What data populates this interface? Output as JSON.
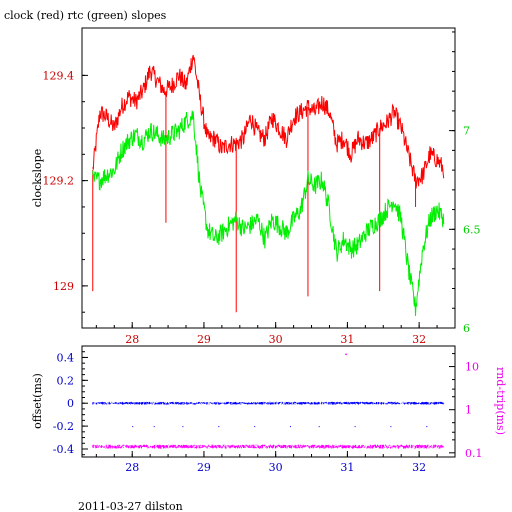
{
  "title": "clock (red) rtc (green) slopes",
  "footer": "2011-03-27 dilston",
  "colors": {
    "clock": "#ff0000",
    "rtc": "#00ee00",
    "offset": "#0000ff",
    "rndtrip": "#ff00ff",
    "axis_left_top": "#cc0000",
    "axis_right_top": "#00cc00",
    "axis_blue": "#0000cc",
    "axis_magenta": "#ee00ee"
  },
  "chart_data": [
    {
      "type": "line",
      "title": "clock (red) rtc (green) slopes",
      "xlabel": "",
      "ylabel": "clockslope",
      "ylabel_right": "",
      "xlim": [
        27.3,
        32.5
      ],
      "ylim": [
        128.92,
        129.49
      ],
      "ylim_right": [
        6.0,
        7.52
      ],
      "x_ticks": [
        28,
        29,
        30,
        31,
        32
      ],
      "x_tick_labels": [
        "28",
        "29",
        "30",
        "31",
        "32"
      ],
      "y_ticks": [
        129,
        129.2,
        129.4
      ],
      "y_tick_labels": [
        "129",
        "129.2",
        "129.4"
      ],
      "y_right_ticks": [
        6,
        6.5,
        7
      ],
      "y_right_tick_labels": [
        "6",
        "6.5",
        "7"
      ],
      "series": [
        {
          "name": "clock",
          "axis": "left",
          "points": [
            [
              27.45,
              129.22
            ],
            [
              27.55,
              129.33
            ],
            [
              27.65,
              129.32
            ],
            [
              27.75,
              129.3
            ],
            [
              27.85,
              129.34
            ],
            [
              27.95,
              129.36
            ],
            [
              28.05,
              129.35
            ],
            [
              28.15,
              129.37
            ],
            [
              28.25,
              129.41
            ],
            [
              28.35,
              129.39
            ],
            [
              28.45,
              129.37
            ],
            [
              28.55,
              129.38
            ],
            [
              28.65,
              129.4
            ],
            [
              28.75,
              129.38
            ],
            [
              28.85,
              129.44
            ],
            [
              28.95,
              129.35
            ],
            [
              29.05,
              129.28
            ],
            [
              29.15,
              129.28
            ],
            [
              29.25,
              129.26
            ],
            [
              29.35,
              129.27
            ],
            [
              29.45,
              129.27
            ],
            [
              29.55,
              129.28
            ],
            [
              29.65,
              129.32
            ],
            [
              29.75,
              129.29
            ],
            [
              29.85,
              129.28
            ],
            [
              29.95,
              129.32
            ],
            [
              30.05,
              129.3
            ],
            [
              30.15,
              129.28
            ],
            [
              30.25,
              129.32
            ],
            [
              30.35,
              129.33
            ],
            [
              30.45,
              129.34
            ],
            [
              30.55,
              129.33
            ],
            [
              30.65,
              129.35
            ],
            [
              30.75,
              129.33
            ],
            [
              30.85,
              129.27
            ],
            [
              30.95,
              129.28
            ],
            [
              31.05,
              129.25
            ],
            [
              31.15,
              129.28
            ],
            [
              31.25,
              129.27
            ],
            [
              31.35,
              129.28
            ],
            [
              31.45,
              129.3
            ],
            [
              31.55,
              129.31
            ],
            [
              31.65,
              129.33
            ],
            [
              31.75,
              129.3
            ],
            [
              31.85,
              129.25
            ],
            [
              31.95,
              129.2
            ],
            [
              32.05,
              129.21
            ],
            [
              32.15,
              129.25
            ],
            [
              32.25,
              129.24
            ],
            [
              32.35,
              129.22
            ]
          ],
          "spikes": [
            [
              27.45,
              128.99
            ],
            [
              28.47,
              129.12
            ],
            [
              29.45,
              128.95
            ],
            [
              30.45,
              128.98
            ],
            [
              31.45,
              128.99
            ],
            [
              31.95,
              129.15
            ]
          ]
        },
        {
          "name": "rtc",
          "axis": "right",
          "points": [
            [
              27.45,
              6.75
            ],
            [
              27.55,
              6.75
            ],
            [
              27.65,
              6.78
            ],
            [
              27.75,
              6.8
            ],
            [
              27.85,
              6.9
            ],
            [
              27.95,
              6.95
            ],
            [
              28.05,
              6.98
            ],
            [
              28.15,
              6.95
            ],
            [
              28.25,
              7.0
            ],
            [
              28.35,
              6.98
            ],
            [
              28.45,
              6.95
            ],
            [
              28.55,
              6.98
            ],
            [
              28.65,
              7.0
            ],
            [
              28.75,
              7.05
            ],
            [
              28.85,
              7.08
            ],
            [
              28.95,
              6.7
            ],
            [
              29.05,
              6.5
            ],
            [
              29.15,
              6.45
            ],
            [
              29.25,
              6.48
            ],
            [
              29.35,
              6.52
            ],
            [
              29.45,
              6.55
            ],
            [
              29.55,
              6.5
            ],
            [
              29.65,
              6.52
            ],
            [
              29.75,
              6.55
            ],
            [
              29.85,
              6.45
            ],
            [
              29.95,
              6.55
            ],
            [
              30.05,
              6.52
            ],
            [
              30.15,
              6.48
            ],
            [
              30.25,
              6.55
            ],
            [
              30.35,
              6.6
            ],
            [
              30.45,
              6.75
            ],
            [
              30.55,
              6.72
            ],
            [
              30.65,
              6.75
            ],
            [
              30.75,
              6.6
            ],
            [
              30.85,
              6.38
            ],
            [
              30.95,
              6.45
            ],
            [
              31.05,
              6.4
            ],
            [
              31.15,
              6.42
            ],
            [
              31.25,
              6.48
            ],
            [
              31.35,
              6.52
            ],
            [
              31.45,
              6.55
            ],
            [
              31.55,
              6.6
            ],
            [
              31.65,
              6.65
            ],
            [
              31.75,
              6.55
            ],
            [
              31.85,
              6.3
            ],
            [
              31.95,
              6.1
            ],
            [
              32.05,
              6.4
            ],
            [
              32.15,
              6.55
            ],
            [
              32.25,
              6.6
            ],
            [
              32.35,
              6.55
            ]
          ],
          "spikes": []
        }
      ]
    },
    {
      "type": "scatter",
      "xlabel": "",
      "ylabel": "offset(ms)",
      "ylabel_right": "rnd-trip(ms)",
      "xlim": [
        27.3,
        32.5
      ],
      "ylim": [
        -0.47,
        0.5
      ],
      "y_right_scale": "log",
      "ylim_right": [
        0.08,
        30
      ],
      "x_ticks": [
        28,
        29,
        30,
        31,
        32
      ],
      "x_tick_labels": [
        "28",
        "29",
        "30",
        "31",
        "32"
      ],
      "y_ticks": [
        -0.4,
        -0.2,
        0,
        0.2,
        0.4
      ],
      "y_tick_labels": [
        "-0.4",
        "-0.2",
        "0",
        "0.2",
        "0.4"
      ],
      "y_right_ticks": [
        0.1,
        1,
        10
      ],
      "y_right_tick_labels": [
        "0.1",
        "1",
        "10"
      ],
      "series": [
        {
          "name": "offset",
          "axis": "left",
          "center": 0.0,
          "spread": 0.012,
          "x_range": [
            27.45,
            32.35
          ]
        },
        {
          "name": "rndtrip",
          "axis": "right",
          "center": 0.14,
          "spread": 0.015,
          "x_range": [
            27.45,
            32.35
          ]
        }
      ],
      "outliers": [
        [
          28.0,
          -0.2
        ],
        [
          28.3,
          -0.2
        ],
        [
          28.7,
          -0.2
        ],
        [
          29.2,
          -0.2
        ],
        [
          29.7,
          -0.2
        ],
        [
          30.2,
          -0.2
        ],
        [
          30.6,
          -0.2
        ],
        [
          31.1,
          -0.2
        ],
        [
          31.6,
          -0.2
        ],
        [
          32.1,
          -0.2
        ]
      ],
      "rndtrip_outliers": [
        [
          30.97,
          20
        ]
      ]
    }
  ]
}
